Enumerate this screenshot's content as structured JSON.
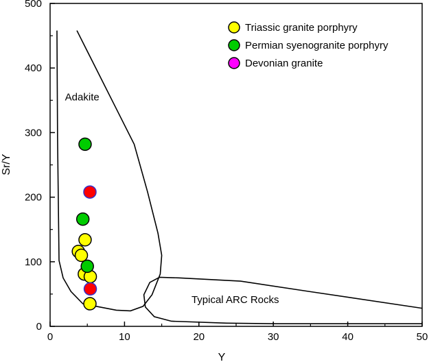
{
  "chart_data": {
    "type": "scatter",
    "xlabel": "Y",
    "ylabel": "Sr/Y",
    "xlim": [
      0,
      50
    ],
    "ylim": [
      0,
      500
    ],
    "xticks": [
      0,
      10,
      20,
      30,
      40,
      50
    ],
    "yticks": [
      0,
      100,
      200,
      300,
      400,
      500
    ],
    "grid": false,
    "legend_position": "top-right",
    "series": [
      {
        "name": "Triassic granite porphyry",
        "fill": "#ffff00",
        "stroke": "#000000",
        "legend_fill": "#ffff00",
        "points": [
          [
            4.7,
            134
          ],
          [
            3.8,
            116
          ],
          [
            4.2,
            110
          ],
          [
            4.6,
            81
          ],
          [
            5.4,
            77
          ],
          [
            5.35,
            35
          ]
        ]
      },
      {
        "name": "Permian syenogranite porphyry",
        "fill": "#00cc00",
        "stroke": "#000000",
        "legend_fill": "#00cc00",
        "points": [
          [
            4.7,
            282
          ],
          [
            4.4,
            166
          ],
          [
            5.0,
            93
          ]
        ]
      },
      {
        "name": "Devonian granite",
        "fill": "#ff0000",
        "stroke": "#3333cc",
        "legend_fill": "#ff00ff",
        "points": [
          [
            5.35,
            208
          ],
          [
            5.4,
            58
          ]
        ]
      }
    ],
    "regions": [
      {
        "name": "Adakite",
        "label_at": [
          2,
          350
        ],
        "outline": [
          [
            0.92,
            458
          ],
          [
            1.0,
            293
          ],
          [
            1.2,
            102
          ],
          [
            1.75,
            75
          ],
          [
            2.8,
            54
          ],
          [
            4.4,
            35
          ],
          [
            6.2,
            31
          ],
          [
            8.9,
            25
          ],
          [
            10.8,
            24
          ],
          [
            12.5,
            31
          ],
          [
            13.7,
            49
          ],
          [
            14.8,
            81
          ],
          [
            15.0,
            110
          ],
          [
            14.5,
            144
          ],
          [
            13.1,
            208
          ],
          [
            11.3,
            282
          ],
          [
            8.5,
            346
          ],
          [
            5.7,
            410
          ],
          [
            3.6,
            458
          ]
        ],
        "closed": false
      },
      {
        "name": "Typical ARC Rocks",
        "label_at": [
          19,
          36
        ],
        "outline": [
          [
            50,
            28
          ],
          [
            34.8,
            54
          ],
          [
            25.6,
            70
          ],
          [
            17.3,
            75
          ],
          [
            14.7,
            76
          ],
          [
            13.4,
            68
          ],
          [
            12.6,
            49
          ],
          [
            12.8,
            30
          ],
          [
            14.0,
            15
          ],
          [
            16.3,
            8
          ],
          [
            23.7,
            5
          ],
          [
            30.2,
            4
          ],
          [
            50,
            4
          ]
        ],
        "closed": false
      }
    ]
  }
}
